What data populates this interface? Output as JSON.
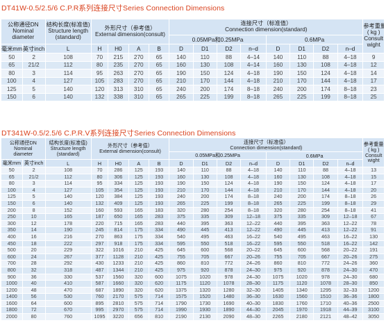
{
  "colors": {
    "title": "#d9401c",
    "header_bg": "#d5e4f4",
    "row_odd": "#edf3fa",
    "row_even": "#dbe8f5"
  },
  "table1": {
    "title": "DT41W-0.5/2.5/6 C.P.R系列连接尺寸Series Connection Dimensions",
    "header": {
      "dn_cn": "公称通径DN",
      "dn_en1": "Nominal",
      "dn_en2": "diameter",
      "sl_cn": "结构长度(标准值)",
      "sl_en1": "Structure length",
      "sl_en2": "(standard)",
      "ext_cn": "外形尺寸（参考值）",
      "ext_en": "External dimension(consult)",
      "conn_cn": "连接尺寸（标准值）",
      "conn_en": "Connection dimension(standard)",
      "wt_cn": "参考重量",
      "wt_en1": "( kg )",
      "wt_en2": "Consult",
      "wt_en3": "wight",
      "p1": "0.05MPa和0.25MPa",
      "p2": "0.6MPa",
      "mm": "毫米mm",
      "inch": "英寸inch",
      "L": "L",
      "H": "H",
      "H0": "H0",
      "A": "A",
      "B": "B",
      "D": "D",
      "D1": "D1",
      "D2": "D2",
      "nd": "n–d"
    },
    "rows": [
      [
        "50",
        "2",
        "108",
        "70",
        "215",
        "270",
        "65",
        "140",
        "110",
        "88",
        "4–14",
        "140",
        "110",
        "88",
        "4–18",
        "9"
      ],
      [
        "65",
        "21/2",
        "112",
        "80",
        "235",
        "270",
        "65",
        "160",
        "130",
        "108",
        "4–14",
        "160",
        "130",
        "108",
        "4–18",
        "12"
      ],
      [
        "80",
        "3",
        "114",
        "95",
        "263",
        "270",
        "65",
        "190",
        "150",
        "124",
        "4–18",
        "190",
        "150",
        "124",
        "4–18",
        "14"
      ],
      [
        "100",
        "4",
        "127",
        "105",
        "283",
        "270",
        "65",
        "210",
        "170",
        "144",
        "4–18",
        "210",
        "170",
        "144",
        "4–18",
        "17"
      ],
      [
        "125",
        "5",
        "140",
        "120",
        "313",
        "310",
        "65",
        "240",
        "200",
        "174",
        "8–18",
        "240",
        "200",
        "174",
        "8–18",
        "23"
      ],
      [
        "150",
        "6",
        "140",
        "132",
        "338",
        "310",
        "65",
        "265",
        "225",
        "199",
        "8–18",
        "265",
        "225",
        "199",
        "8–18",
        "25"
      ]
    ]
  },
  "table2": {
    "title": "DT341W-0.5/2.5/6 C.P.R.V系列连接尺寸Series Connection Dimensions",
    "header": {
      "dn_cn": "公称通径DN",
      "dn_en1": "Nominal",
      "dn_en2": "diameter",
      "sl_cn": "结构长度(标准值)",
      "sl_en1": "Structure length",
      "sl_en2": "(standard)",
      "ext_cn": "外形尺寸（参考值）",
      "ext_en": "External dimension(consult)",
      "conn_cn": "连接尺寸（标准值）",
      "conn_en": "Connection dimension(standard)",
      "wt_cn": "参考重量",
      "wt_en1": "( kg )",
      "wt_en2": "Consult",
      "wt_en3": "wight",
      "p1": "0.05MPa和0.25MPa",
      "p2": "0.6MPa",
      "mm": "毫米mm",
      "inch": "英寸inch",
      "L": "L",
      "H": "H",
      "H0": "H0",
      "A": "A",
      "B": "B",
      "D": "D",
      "D1": "D1",
      "D2": "D2",
      "nd": "n–d"
    },
    "rows": [
      [
        "50",
        "2",
        "108",
        "70",
        "286",
        "125",
        "193",
        "140",
        "110",
        "88",
        "4–18",
        "140",
        "110",
        "88",
        "4–18",
        "13"
      ],
      [
        "65",
        "21/2",
        "112",
        "80",
        "306",
        "125",
        "193",
        "160",
        "130",
        "108",
        "4–18",
        "160",
        "130",
        "108",
        "4–18",
        "15"
      ],
      [
        "80",
        "3",
        "114",
        "95",
        "334",
        "125",
        "193",
        "190",
        "150",
        "124",
        "4–18",
        "190",
        "150",
        "124",
        "4–18",
        "17"
      ],
      [
        "100",
        "4",
        "127",
        "105",
        "354",
        "125",
        "193",
        "210",
        "170",
        "144",
        "4–18",
        "210",
        "170",
        "144",
        "4–18",
        "20"
      ],
      [
        "125",
        "5",
        "140",
        "120",
        "384",
        "125",
        "193",
        "240",
        "200",
        "174",
        "8–18",
        "240",
        "200",
        "174",
        "8–18",
        "26"
      ],
      [
        "150",
        "6",
        "140",
        "132",
        "409",
        "125",
        "193",
        "265",
        "225",
        "199",
        "8–18",
        "265",
        "225",
        "199",
        "8–18",
        "29"
      ],
      [
        "200",
        "8",
        "152",
        "160",
        "593",
        "165",
        "183",
        "320",
        "280",
        "254",
        "8–18",
        "320",
        "280",
        "254",
        "8–18",
        "41"
      ],
      [
        "250",
        "10",
        "165",
        "187",
        "650",
        "165",
        "283",
        "375",
        "335",
        "309",
        "12–18",
        "375",
        "335",
        "309",
        "12–18",
        "67"
      ],
      [
        "300",
        "12",
        "178",
        "220",
        "715",
        "165",
        "283",
        "440",
        "395",
        "363",
        "12–22",
        "440",
        "395",
        "363",
        "12–22",
        "78"
      ],
      [
        "350",
        "14",
        "190",
        "245",
        "814",
        "175",
        "334",
        "490",
        "445",
        "413",
        "12–22",
        "490",
        "445",
        "413",
        "12–22",
        "91"
      ],
      [
        "400",
        "16",
        "216",
        "270",
        "863",
        "175",
        "334",
        "540",
        "495",
        "463",
        "16–22",
        "540",
        "495",
        "463",
        "16–22",
        "130"
      ],
      [
        "450",
        "18",
        "222",
        "297",
        "918",
        "175",
        "334",
        "595",
        "550",
        "518",
        "16–22",
        "595",
        "550",
        "518",
        "16–22",
        "142"
      ],
      [
        "500",
        "20",
        "229",
        "322",
        "1016",
        "210",
        "425",
        "645",
        "600",
        "568",
        "20–22",
        "645",
        "600",
        "568",
        "20–22",
        "191"
      ],
      [
        "600",
        "24",
        "267",
        "377",
        "1128",
        "210",
        "425",
        "755",
        "705",
        "667",
        "20–26",
        "755",
        "705",
        "667",
        "20–26",
        "275"
      ],
      [
        "700",
        "28",
        "292",
        "430",
        "1233",
        "210",
        "425",
        "860",
        "810",
        "772",
        "24–26",
        "860",
        "810",
        "772",
        "24–26",
        "360"
      ],
      [
        "800",
        "32",
        "318",
        "487",
        "1344",
        "210",
        "425",
        "975",
        "920",
        "878",
        "24–30",
        "975",
        "920",
        "878",
        "24–30",
        "470"
      ],
      [
        "900",
        "36",
        "330",
        "537",
        "1560",
        "320",
        "600",
        "1075",
        "1020",
        "978",
        "24–30",
        "1075",
        "1020",
        "978",
        "24–30",
        "680"
      ],
      [
        "1000",
        "40",
        "410",
        "587",
        "1660",
        "320",
        "620",
        "1175",
        "1120",
        "1078",
        "28–30",
        "1175",
        "1120",
        "1078",
        "28–30",
        "850"
      ],
      [
        "1200",
        "48",
        "470",
        "687",
        "1890",
        "320",
        "620",
        "1375",
        "1320",
        "1280",
        "32–30",
        "1405",
        "1340",
        "1295",
        "32–33",
        "1200"
      ],
      [
        "1400",
        "56",
        "530",
        "760",
        "2170",
        "575",
        "714",
        "1575",
        "1520",
        "1480",
        "36–30",
        "1630",
        "1560",
        "1510",
        "36–36",
        "1800"
      ],
      [
        "1600",
        "64",
        "600",
        "895",
        "2810",
        "575",
        "714",
        "1790",
        "1730",
        "1690",
        "40–30",
        "1830",
        "1760",
        "1710",
        "40–36",
        "2500"
      ],
      [
        "1800",
        "72",
        "670",
        "995",
        "2970",
        "575",
        "714",
        "1990",
        "1930",
        "1890",
        "44–30",
        "2045",
        "1970",
        "1918",
        "44–39",
        "3100"
      ],
      [
        "2000",
        "80",
        "760",
        "1095",
        "3220",
        "656",
        "810",
        "2190",
        "2130",
        "2090",
        "48–30",
        "2265",
        "2180",
        "2121",
        "48–42",
        "3050"
      ]
    ]
  }
}
